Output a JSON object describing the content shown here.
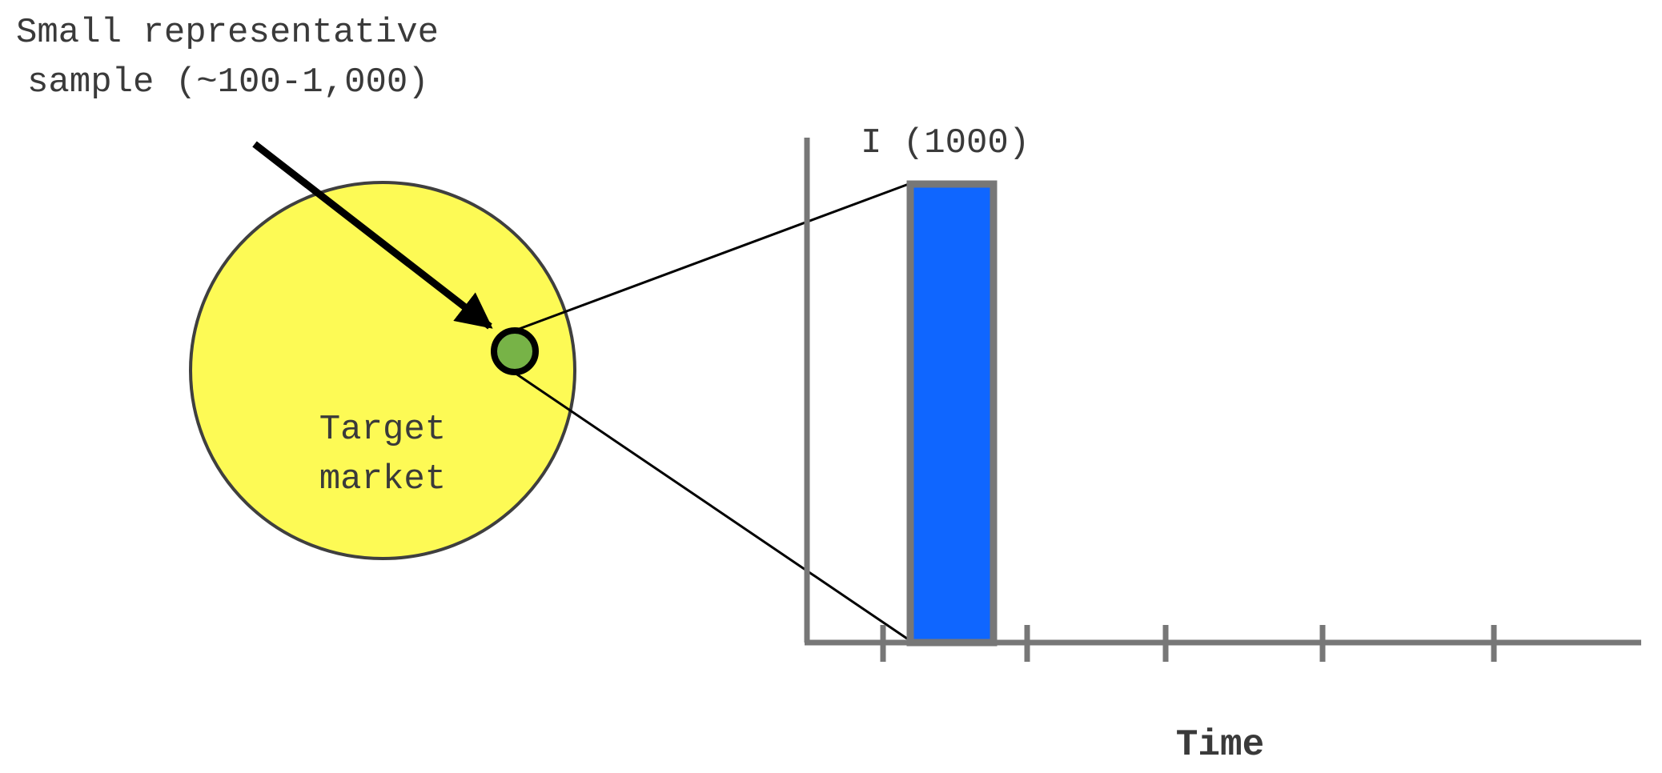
{
  "callout": {
    "line1": "Small representative",
    "line2": "sample (~100-1,000)"
  },
  "circle": {
    "label_line1": "Target",
    "label_line2": "market"
  },
  "chart": {
    "bar_label": "I (1000)",
    "x_axis_label": "Time"
  },
  "chart_data": {
    "type": "bar",
    "categories": [
      "I"
    ],
    "values": [
      1000
    ],
    "xlabel": "Time",
    "ylabel": "",
    "data_labels": [
      "I (1000)"
    ],
    "tick_count": 5,
    "grid": false
  },
  "colors": {
    "circle_fill": "#fdfa55",
    "circle_stroke": "#3f3f3f",
    "sample_dot_fill": "#77b347",
    "bar_fill": "#0f66ff",
    "axis_gray": "#777777",
    "text": "#3a3a3a",
    "arrow": "#000000"
  }
}
